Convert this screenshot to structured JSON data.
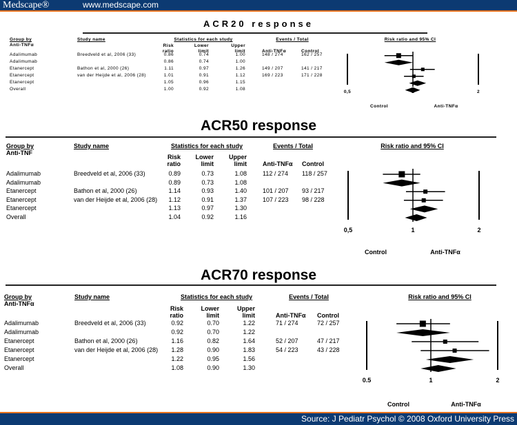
{
  "header": {
    "logo": "Medscape®",
    "url": "www.medscape.com"
  },
  "footer": {
    "source": "Source: J Pediatr Psychol © 2008 Oxford University Press"
  },
  "colors": {
    "header_bg": "#0c3a72",
    "accent": "#e8731e"
  },
  "chart_data": [
    {
      "type": "forest",
      "title": "ACR20 response",
      "columns": {
        "group_by": "Group by",
        "group_sub": "Anti-TNFα",
        "study": "Study name",
        "stats": "Statistics for each study",
        "rr": [
          "Risk",
          "ratio"
        ],
        "lower": [
          "Lower",
          "limit"
        ],
        "upper": [
          "Upper",
          "limit"
        ],
        "events": "Events / Total",
        "anti": "Anti-TNFα",
        "control": "Control",
        "plot_title": "Risk ratio and 95% CI"
      },
      "x_scale": "log",
      "xlim": [
        0.5,
        2
      ],
      "ticks": [
        "0,5",
        "1",
        "2"
      ],
      "favours": {
        "left": "Control",
        "right": "Anti-TNFα"
      },
      "rows": [
        {
          "group": "Adalimumab",
          "study": "Breedveld et al, 2006 (33)",
          "rr": "0.86",
          "lower": "0.74",
          "upper": "1.00",
          "anti": "148 / 274",
          "control": "162 / 257"
        },
        {
          "group": "Adalimumab",
          "study": "",
          "rr": "0.86",
          "lower": "0.74",
          "upper": "1.00",
          "anti": "",
          "control": ""
        },
        {
          "group": "Etanercept",
          "study": "Bathon et al, 2000 (26)",
          "rr": "1.11",
          "lower": "0.97",
          "upper": "1.26",
          "anti": "149 / 207",
          "control": "141 / 217"
        },
        {
          "group": "Etanercept",
          "study": "van der Heijde et al, 2006 (28)",
          "rr": "1.01",
          "lower": "0.91",
          "upper": "1.12",
          "anti": "169 / 223",
          "control": "171 / 228"
        },
        {
          "group": "Etanercept",
          "study": "",
          "rr": "1.05",
          "lower": "0.96",
          "upper": "1.15",
          "anti": "",
          "control": ""
        },
        {
          "group": "Overall",
          "study": "",
          "rr": "1.00",
          "lower": "0.92",
          "upper": "1.08",
          "anti": "",
          "control": ""
        }
      ]
    },
    {
      "type": "forest",
      "title": "ACR50 response",
      "columns": {
        "group_by": "Group by",
        "group_sub": "Anti-TNF",
        "study": "Study name",
        "stats": "Statistics for each study",
        "rr": [
          "Risk",
          "ratio"
        ],
        "lower": [
          "Lower",
          "limit"
        ],
        "upper": [
          "Upper",
          "limit"
        ],
        "events": "Events / Total",
        "anti": "Anti-TNFα",
        "control": "Control",
        "plot_title": "Risk ratio and 95% CI"
      },
      "x_scale": "log",
      "xlim": [
        0.5,
        2
      ],
      "ticks": [
        "0,5",
        "1",
        "2"
      ],
      "favours": {
        "left": "Control",
        "right": "Anti-TNFα"
      },
      "rows": [
        {
          "group": "Adalimumab",
          "study": "Breedveld et al, 2006 (33)",
          "rr": "0.89",
          "lower": "0.73",
          "upper": "1.08",
          "anti": "112 / 274",
          "control": "118 / 257"
        },
        {
          "group": "Adalimumab",
          "study": "",
          "rr": "0.89",
          "lower": "0.73",
          "upper": "1.08",
          "anti": "",
          "control": ""
        },
        {
          "group": "Etanercept",
          "study": "Bathon et al, 2000 (26)",
          "rr": "1.14",
          "lower": "0.93",
          "upper": "1.40",
          "anti": "101 / 207",
          "control": "93 / 217"
        },
        {
          "group": "Etanercept",
          "study": "van der Heijde et al, 2006 (28)",
          "rr": "1.12",
          "lower": "0.91",
          "upper": "1.37",
          "anti": "107 / 223",
          "control": "98 / 228"
        },
        {
          "group": "Etanercept",
          "study": "",
          "rr": "1.13",
          "lower": "0.97",
          "upper": "1.30",
          "anti": "",
          "control": ""
        },
        {
          "group": "Overall",
          "study": "",
          "rr": "1.04",
          "lower": "0.92",
          "upper": "1.16",
          "anti": "",
          "control": ""
        }
      ]
    },
    {
      "type": "forest",
      "title": "ACR70 response",
      "columns": {
        "group_by": "Group by",
        "group_sub": "Anti-TNFα",
        "study": "Study name",
        "stats": "Statistics for each study",
        "rr": [
          "Risk",
          "ratio"
        ],
        "lower": [
          "Lower",
          "limit"
        ],
        "upper": [
          "Upper",
          "limit"
        ],
        "events": "Events / Total",
        "anti": "Anti-TNFα",
        "control": "Control",
        "plot_title": "Risk ratio and 95% CI"
      },
      "x_scale": "log",
      "xlim": [
        0.5,
        2
      ],
      "ticks": [
        "0.5",
        "1",
        "2"
      ],
      "favours": {
        "left": "Control",
        "right": "Anti-TNFα"
      },
      "rows": [
        {
          "group": "Adalimumab",
          "study": "Breedveld et al, 2006 (33)",
          "rr": "0.92",
          "lower": "0.70",
          "upper": "1.22",
          "anti": "71 / 274",
          "control": "72 / 257"
        },
        {
          "group": "Adalimumab",
          "study": "",
          "rr": "0.92",
          "lower": "0.70",
          "upper": "1.22",
          "anti": "",
          "control": ""
        },
        {
          "group": "Etanercept",
          "study": "Bathon et al, 2000 (26)",
          "rr": "1.16",
          "lower": "0.82",
          "upper": "1.64",
          "anti": "52 / 207",
          "control": "47 / 217"
        },
        {
          "group": "Etanercept",
          "study": "van der Heijde et al, 2006 (28)",
          "rr": "1.28",
          "lower": "0.90",
          "upper": "1.83",
          "anti": "54 / 223",
          "control": "43 / 228"
        },
        {
          "group": "Etanercept",
          "study": "",
          "rr": "1.22",
          "lower": "0.95",
          "upper": "1.56",
          "anti": "",
          "control": ""
        },
        {
          "group": "Overall",
          "study": "",
          "rr": "1.08",
          "lower": "0.90",
          "upper": "1.30",
          "anti": "",
          "control": ""
        }
      ]
    }
  ]
}
